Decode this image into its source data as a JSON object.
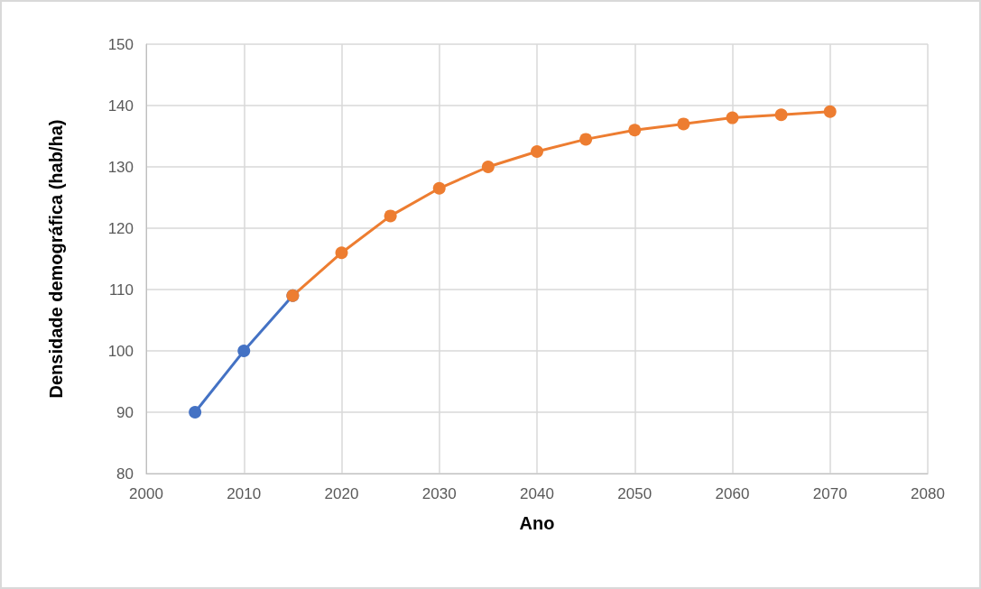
{
  "chart_data": {
    "type": "line",
    "xlabel": "Ano",
    "ylabel": "Densidade demográfica (hab/ha)",
    "series": [
      {
        "color": "#4472c4",
        "x": [
          2005,
          2010,
          2015
        ],
        "values": [
          90,
          100,
          109
        ]
      },
      {
        "color": "#ed7d31",
        "x": [
          2015,
          2020,
          2025,
          2030,
          2035,
          2040,
          2045,
          2050,
          2055,
          2060,
          2065,
          2070
        ],
        "values": [
          109,
          116,
          122,
          126.5,
          130,
          132.5,
          134.5,
          136,
          137,
          138,
          138.5,
          139
        ]
      }
    ],
    "xlim": [
      2000,
      2080
    ],
    "xticks": [
      2000,
      2010,
      2020,
      2030,
      2040,
      2050,
      2060,
      2070,
      2080
    ],
    "ylim": [
      80,
      150
    ],
    "yticks": [
      80,
      90,
      100,
      110,
      120,
      130,
      140,
      150
    ],
    "grid": true,
    "marker": "circle",
    "line_style": "solid"
  }
}
